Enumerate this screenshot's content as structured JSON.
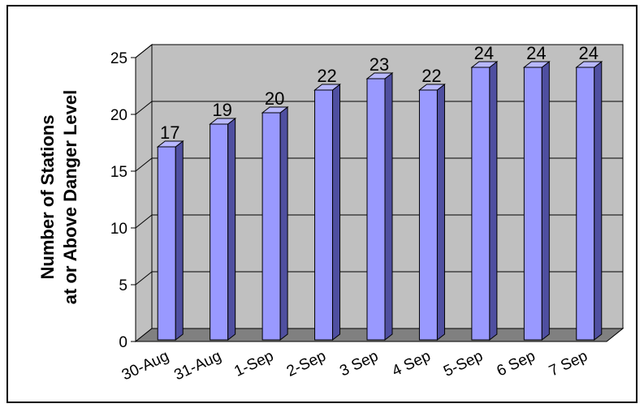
{
  "chart_data": {
    "type": "bar",
    "style": "3d-column",
    "categories": [
      "30-Aug",
      "31-Aug",
      "1-Sep",
      "2-Sep",
      "3 Sep",
      "4 Sep",
      "5-Sep",
      "6 Sep",
      "7 Sep"
    ],
    "values": [
      17,
      19,
      20,
      22,
      23,
      22,
      24,
      24,
      24
    ],
    "title": "",
    "xlabel": "",
    "ylabel_lines": [
      "Number of Stations",
      "at or Above Danger Level"
    ],
    "ylim": [
      0,
      25
    ],
    "yticks": [
      0,
      5,
      10,
      15,
      20,
      25
    ],
    "grid": true,
    "legend": "none",
    "colors": {
      "bar_front": "#9999ff",
      "bar_side": "#4f4fa0",
      "bar_top": "#b8b8ff",
      "back_wall": "#c0c0c0",
      "floor": "#808080",
      "gridline": "#000000"
    }
  }
}
